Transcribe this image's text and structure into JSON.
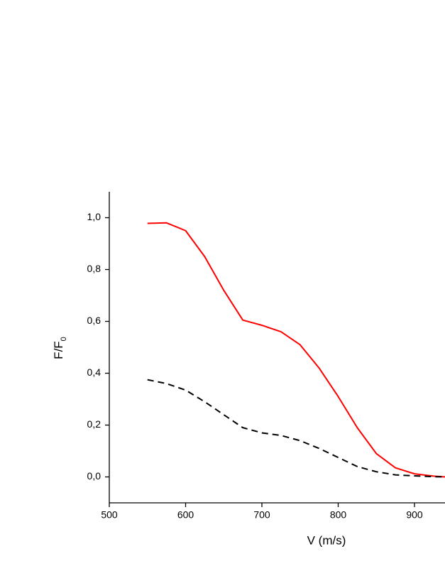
{
  "chart_data": {
    "type": "line",
    "xlabel": "V (m/s)",
    "ylabel": "F/F",
    "ylabel_subscript": "0",
    "xlim": [
      500,
      940
    ],
    "ylim": [
      -0.1,
      1.1
    ],
    "xticks": [
      500,
      600,
      700,
      800,
      900
    ],
    "yticks": [
      {
        "value": 0.0,
        "label": "0,0"
      },
      {
        "value": 0.2,
        "label": "0,2"
      },
      {
        "value": 0.4,
        "label": "0,4"
      },
      {
        "value": 0.6,
        "label": "0,6"
      },
      {
        "value": 0.8,
        "label": "0,8"
      },
      {
        "value": 1.0,
        "label": "1,0"
      }
    ],
    "series": [
      {
        "color": "#ff0000",
        "dash": false,
        "x": [
          550,
          575,
          600,
          625,
          650,
          675,
          700,
          725,
          750,
          775,
          800,
          825,
          850,
          875,
          900,
          925,
          940
        ],
        "values": [
          0.978,
          0.98,
          0.95,
          0.85,
          0.72,
          0.605,
          0.585,
          0.56,
          0.51,
          0.42,
          0.31,
          0.19,
          0.09,
          0.035,
          0.012,
          0.003,
          0.0
        ]
      },
      {
        "color": "#000000",
        "dash": true,
        "x": [
          550,
          575,
          600,
          625,
          650,
          675,
          700,
          725,
          750,
          775,
          800,
          825,
          850,
          875,
          900,
          925,
          940
        ],
        "values": [
          0.375,
          0.36,
          0.335,
          0.29,
          0.24,
          0.19,
          0.17,
          0.16,
          0.14,
          0.11,
          0.075,
          0.04,
          0.02,
          0.008,
          0.004,
          0.001,
          0.0
        ]
      }
    ]
  }
}
